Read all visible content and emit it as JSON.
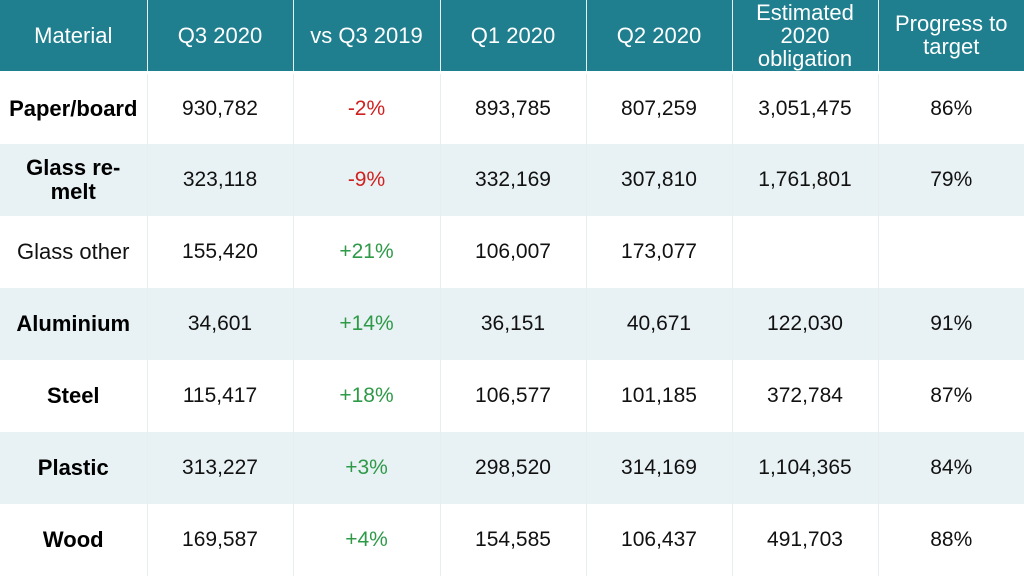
{
  "table": {
    "headers": [
      "Material",
      "Q3 2020",
      "vs Q3 2019",
      "Q1 2020",
      "Q2 2020",
      "Estimated 2020 obligation",
      "Progress to target"
    ],
    "rows": [
      {
        "material": "Paper/board",
        "q3_2020": "930,782",
        "vs_q3_2019": "-2%",
        "q1_2020": "893,785",
        "q2_2020": "807,259",
        "obligation": "3,051,475",
        "progress": "86%"
      },
      {
        "material": "Glass re-melt",
        "q3_2020": "323,118",
        "vs_q3_2019": "-9%",
        "q1_2020": "332,169",
        "q2_2020": "307,810",
        "obligation": "1,761,801",
        "progress": "79%"
      },
      {
        "material": "Glass other",
        "q3_2020": "155,420",
        "vs_q3_2019": "+21%",
        "q1_2020": "106,007",
        "q2_2020": "173,077",
        "obligation": "",
        "progress": ""
      },
      {
        "material": "Aluminium",
        "q3_2020": "34,601",
        "vs_q3_2019": "+14%",
        "q1_2020": "36,151",
        "q2_2020": "40,671",
        "obligation": "122,030",
        "progress": "91%"
      },
      {
        "material": "Steel",
        "q3_2020": "115,417",
        "vs_q3_2019": "+18%",
        "q1_2020": "106,577",
        "q2_2020": "101,185",
        "obligation": "372,784",
        "progress": "87%"
      },
      {
        "material": "Plastic",
        "q3_2020": "313,227",
        "vs_q3_2019": "+3%",
        "q1_2020": "298,520",
        "q2_2020": "314,169",
        "obligation": "1,104,365",
        "progress": "84%"
      },
      {
        "material": "Wood",
        "q3_2020": "169,587",
        "vs_q3_2019": "+4%",
        "q1_2020": "154,585",
        "q2_2020": "106,437",
        "obligation": "491,703",
        "progress": "88%"
      }
    ]
  },
  "colors": {
    "header_bg": "#1f7f8f",
    "header_text": "#ffffff",
    "row_alt_bg": "#e8f1f3",
    "negative": "#d02020",
    "positive": "#2e9a48"
  }
}
